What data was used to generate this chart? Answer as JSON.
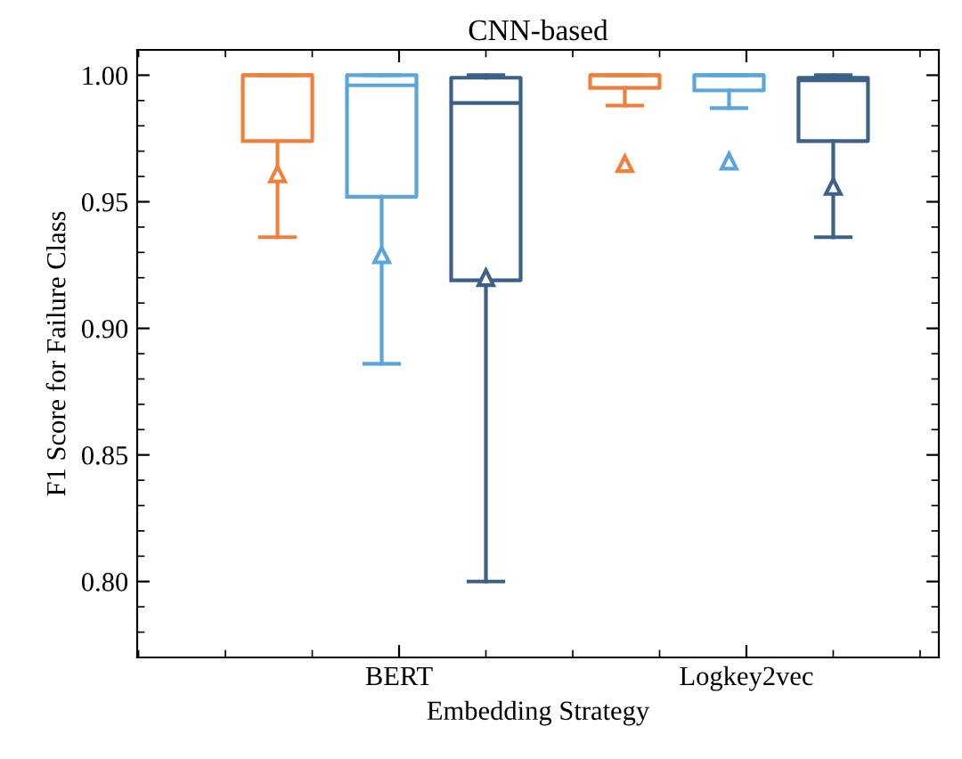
{
  "chart_data": {
    "type": "box",
    "title": "CNN-based",
    "xlabel": "Embedding Strategy",
    "ylabel": "F1 Score for Failure Class",
    "categories": [
      "BERT",
      "Logkey2vec"
    ],
    "series": [
      {
        "color": "#f07f3c",
        "boxes": [
          {
            "low": 0.936,
            "q1": 0.974,
            "median": 1.0,
            "q3": 1.0,
            "high": 1.0,
            "mean": 0.961
          },
          {
            "low": 0.988,
            "q1": 0.995,
            "median": 1.0,
            "q3": 1.0,
            "high": 1.0,
            "mean": 0.965
          }
        ]
      },
      {
        "color": "#5aa5dc",
        "boxes": [
          {
            "low": 0.886,
            "q1": 0.952,
            "median": 0.996,
            "q3": 1.0,
            "high": 1.0,
            "mean": 0.929
          },
          {
            "low": 0.987,
            "q1": 0.994,
            "median": 1.0,
            "q3": 1.0,
            "high": 1.0,
            "mean": 0.966
          }
        ]
      },
      {
        "color": "#3d6089",
        "boxes": [
          {
            "low": 0.8,
            "q1": 0.919,
            "median": 0.989,
            "q3": 0.999,
            "high": 1.0,
            "mean": 0.92
          },
          {
            "low": 0.936,
            "q1": 0.974,
            "median": 0.998,
            "q3": 0.999,
            "high": 1.0,
            "mean": 0.956
          }
        ]
      }
    ],
    "ylim": [
      0.77,
      1.01
    ],
    "yticks": [
      {
        "value": 0.8,
        "label": "0.80"
      },
      {
        "value": 0.85,
        "label": "0.85"
      },
      {
        "value": 0.9,
        "label": "0.90"
      },
      {
        "value": 0.95,
        "label": "0.95"
      },
      {
        "value": 1.0,
        "label": "1.00"
      }
    ],
    "marker": "triangle",
    "grid": false,
    "legend": false
  }
}
